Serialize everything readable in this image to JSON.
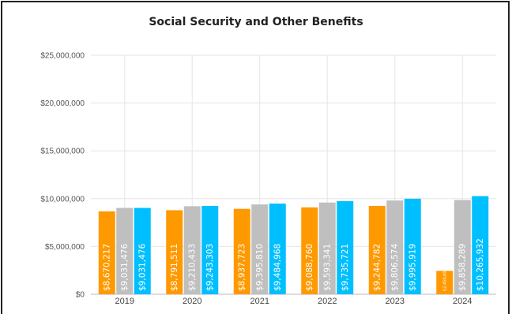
{
  "chart_data": {
    "type": "bar",
    "title": "Social Security and Other Benefits",
    "categories": [
      "2019",
      "2020",
      "2021",
      "2022",
      "2023",
      "2024"
    ],
    "series": [
      {
        "color": "#ff9900",
        "values": [
          8670217,
          8791511,
          8937723,
          9088760,
          9244782,
          2450000
        ],
        "labels": [
          "$8,670,217",
          "$8,791,511",
          "$8,937,723",
          "$9,088,760",
          "$9,244,782",
          "$2,450,000"
        ]
      },
      {
        "color": "#bfbfbf",
        "values": [
          9031476,
          9210433,
          9395810,
          9593341,
          9806574,
          9858289
        ],
        "labels": [
          "$9,031,476",
          "$9,210,433",
          "$9,395,810",
          "$9,593,341",
          "$9,806,574",
          "$9,858,289"
        ]
      },
      {
        "color": "#00bfff",
        "values": [
          9031476,
          9243303,
          9484968,
          9735721,
          9995919,
          10265932
        ],
        "labels": [
          "$9,031,476",
          "$9,243,303",
          "$9,484,968",
          "$9,735,721",
          "$9,995,919",
          "$10,265,932"
        ]
      }
    ],
    "ylim": [
      0,
      25000000
    ],
    "yticks": [
      "$0",
      "$5,000,000",
      "$10,000,000",
      "$15,000,000",
      "$20,000,000",
      "$25,000,000"
    ],
    "grid": true,
    "legend": "none"
  }
}
